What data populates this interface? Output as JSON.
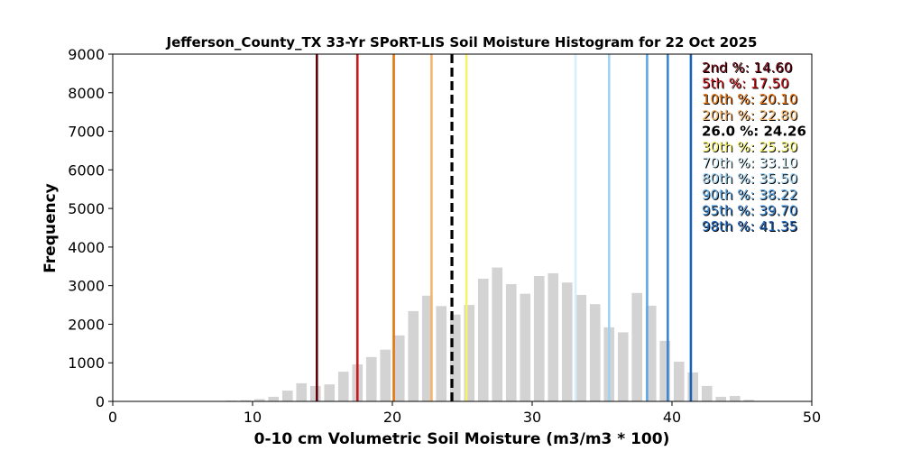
{
  "chart_data": {
    "type": "bar",
    "title": "Jefferson_County_TX 33-Yr SPoRT-LIS Soil Moisture Histogram for 22 Oct 2025",
    "xlabel": "0-10 cm Volumetric Soil Moisture (m3/m3 * 100)",
    "ylabel": "Frequency",
    "xlim": [
      0,
      50
    ],
    "ylim": [
      0,
      9000
    ],
    "xticks": [
      "0",
      "10",
      "20",
      "30",
      "40",
      "50"
    ],
    "yticks": [
      "0",
      "1000",
      "2000",
      "3000",
      "4000",
      "5000",
      "6000",
      "7000",
      "8000",
      "9000"
    ],
    "bar_color": "#d3d3d3",
    "bins_x": [
      7.5,
      8.5,
      9.5,
      10.5,
      11.5,
      12.5,
      13.5,
      14.5,
      15.5,
      16.5,
      17.5,
      18.5,
      19.5,
      20.5,
      21.5,
      22.5,
      23.5,
      24.5,
      25.5,
      26.5,
      27.5,
      28.5,
      29.5,
      30.5,
      31.5,
      32.5,
      33.5,
      34.5,
      35.5,
      36.5,
      37.5,
      38.5,
      39.5,
      40.5,
      41.5,
      42.5,
      43.5,
      44.5,
      45.5
    ],
    "frequencies": [
      10,
      20,
      30,
      60,
      120,
      280,
      470,
      400,
      440,
      770,
      960,
      1150,
      1340,
      1710,
      2340,
      2740,
      2470,
      2250,
      2500,
      3180,
      3470,
      3040,
      2790,
      3250,
      3320,
      3080,
      2760,
      2520,
      1920,
      1790,
      2810,
      2480,
      1570,
      1030,
      750,
      400,
      120,
      140,
      40
    ],
    "percentiles": [
      {
        "label": "2nd %: 14.60",
        "value": 14.6,
        "color": "#67000d",
        "style": "solid"
      },
      {
        "label": "5th %: 17.50",
        "value": 17.5,
        "color": "#cb181d",
        "style": "solid"
      },
      {
        "label": "10th %: 20.10",
        "value": 20.1,
        "color": "#e6730e",
        "style": "solid"
      },
      {
        "label": "20th %: 22.80",
        "value": 22.8,
        "color": "#f5b56b",
        "style": "solid"
      },
      {
        "label": "26.0 %: 24.26",
        "value": 24.26,
        "color": "#000000",
        "style": "dashed"
      },
      {
        "label": "30th %: 25.30",
        "value": 25.3,
        "color": "#f6f26b",
        "style": "solid"
      },
      {
        "label": "70th %: 33.10",
        "value": 33.1,
        "color": "#d6f0fb",
        "style": "solid"
      },
      {
        "label": "80th %: 35.50",
        "value": 35.5,
        "color": "#9fd2f2",
        "style": "solid"
      },
      {
        "label": "90th %: 38.22",
        "value": 38.22,
        "color": "#5fa8e3",
        "style": "solid"
      },
      {
        "label": "95th %: 39.70",
        "value": 39.7,
        "color": "#3a85d2",
        "style": "solid"
      },
      {
        "label": "98th %: 41.35",
        "value": 41.35,
        "color": "#1a62b8",
        "style": "solid"
      }
    ]
  }
}
